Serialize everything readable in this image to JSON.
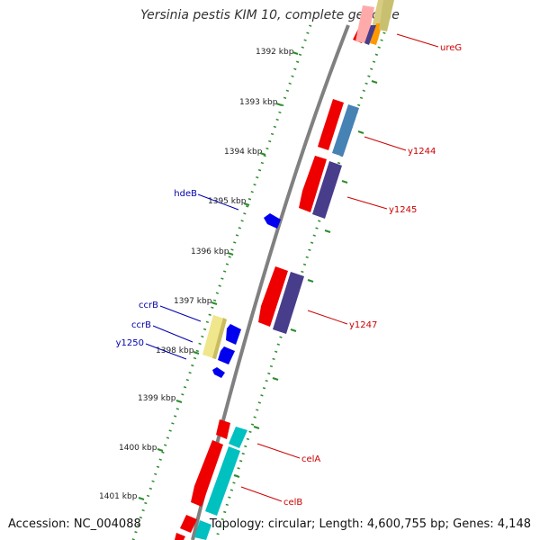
{
  "title": "Yersinia pestis KIM 10, complete genome",
  "footer": {
    "accession": "Accession: NC_004088",
    "summary": "Topology: circular; Length: 4,600,755 bp; Genes: 4,148"
  },
  "colors": {
    "backbone": "#808080",
    "tick_dots": "#2e8b2e",
    "right_labels": "#cc0000",
    "left_labels": "#0000aa",
    "red_gene": "#ee0000",
    "steelblue_gene": "#4682b4",
    "purple_gene": "#483d8b",
    "cyan_gene": "#00c0c0",
    "khaki_gene": "#f0e68c",
    "blue_gene": "#0000ee"
  },
  "ticks": [
    {
      "label": "1392 kbp"
    },
    {
      "label": "1393 kbp"
    },
    {
      "label": "1394 kbp"
    },
    {
      "label": "1395 kbp"
    },
    {
      "label": "1396 kbp"
    },
    {
      "label": "1397 kbp"
    },
    {
      "label": "1398 kbp"
    },
    {
      "label": "1399 kbp"
    },
    {
      "label": "1400 kbp"
    },
    {
      "label": "1401 kbp"
    }
  ],
  "right_labels": [
    "ureG",
    "y1244",
    "y1245",
    "y1247",
    "celA",
    "celB"
  ],
  "left_labels": [
    "hdeB",
    "ccrB",
    "ccrB",
    "y1250"
  ]
}
